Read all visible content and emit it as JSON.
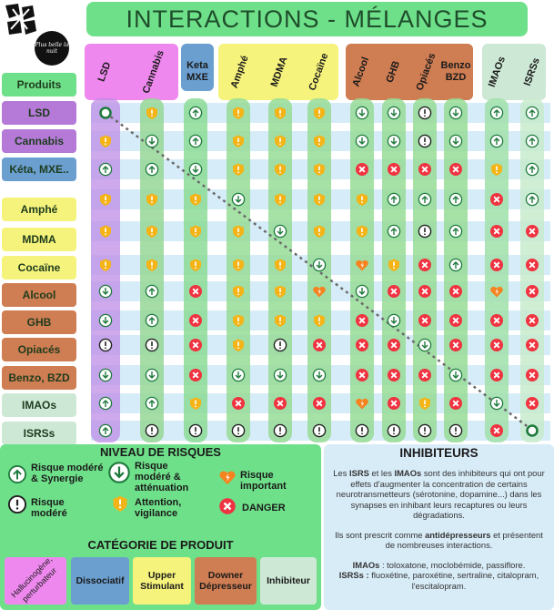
{
  "title": "INTERACTIONS - MÉLANGES",
  "logo_text": "Plus belle la nuit",
  "produits_label": "Produits",
  "colors": {
    "pink": "#ee88ee",
    "blue": "#6b9fd0",
    "yellow": "#f6f37c",
    "brown": "#cf7d52",
    "lightgreen": "#cde9d5",
    "green": "#6fe08a",
    "strip": "#d6ecf8",
    "safe": "#1e7a3c",
    "important": "#f5831f",
    "danger": "#ef3340",
    "warn": "#f4b417"
  },
  "columns": [
    {
      "label": "LSD"
    },
    {
      "label": "Cannabis"
    },
    {
      "label": "Keta MXE"
    },
    {
      "label": "Amphé"
    },
    {
      "label": "MDMA"
    },
    {
      "label": "Cocaïne"
    },
    {
      "label": "Alcool"
    },
    {
      "label": "GHB"
    },
    {
      "label": "Opiacés"
    },
    {
      "label": "Benzo BZD"
    },
    {
      "label": "IMAOs"
    },
    {
      "label": "ISRSs"
    }
  ],
  "rows": [
    {
      "label": "LSD"
    },
    {
      "label": "Cannabis"
    },
    {
      "label": "Kéta, MXE.."
    },
    {
      "label": "Amphé"
    },
    {
      "label": "MDMA"
    },
    {
      "label": "Cocaïne"
    },
    {
      "label": "Alcool"
    },
    {
      "label": "GHB"
    },
    {
      "label": "Opiacés"
    },
    {
      "label": "Benzo, BZD"
    },
    {
      "label": "IMAOs"
    },
    {
      "label": "ISRSs"
    }
  ],
  "matrix": [
    [
      "self",
      "W",
      "U",
      "W",
      "W",
      "W",
      "D",
      "D",
      "M",
      "D",
      "U",
      "U"
    ],
    [
      "W",
      "D",
      "U",
      "W",
      "W",
      "W",
      "D",
      "D",
      "M",
      "D",
      "U",
      "U"
    ],
    [
      "U",
      "U",
      "D",
      "W",
      "W",
      "W",
      "X",
      "X",
      "X",
      "X",
      "W",
      "U"
    ],
    [
      "W",
      "W",
      "W",
      "D",
      "W",
      "W",
      "W",
      "U",
      "U",
      "U",
      "X",
      "U"
    ],
    [
      "W",
      "W",
      "W",
      "W",
      "D",
      "W",
      "W",
      "U",
      "M",
      "U",
      "X",
      "X"
    ],
    [
      "W",
      "W",
      "W",
      "W",
      "W",
      "D",
      "I",
      "W",
      "X",
      "U",
      "X",
      "X"
    ],
    [
      "D",
      "U",
      "X",
      "W",
      "W",
      "I",
      "D",
      "X",
      "X",
      "X",
      "I",
      "X"
    ],
    [
      "D",
      "U",
      "X",
      "W",
      "W",
      "W",
      "X",
      "D",
      "X",
      "X",
      "X",
      "X"
    ],
    [
      "M",
      "M",
      "X",
      "W",
      "M",
      "X",
      "X",
      "X",
      "D",
      "X",
      "X",
      "X"
    ],
    [
      "D",
      "D",
      "X",
      "D",
      "D",
      "D",
      "X",
      "X",
      "X",
      "D",
      "X",
      "X"
    ],
    [
      "U",
      "U",
      "W",
      "X",
      "X",
      "X",
      "I",
      "X",
      "W",
      "X",
      "D",
      "X"
    ],
    [
      "U",
      "M",
      "M",
      "M",
      "M",
      "M",
      "M",
      "M",
      "M",
      "M",
      "X",
      "self"
    ]
  ],
  "legend": {
    "niveau_title": "NIVEAU DE RISQUES",
    "items": {
      "synergie": "Risque modéré & Synergie",
      "attenuation": "Risque modéré & atténuation",
      "important": "Risque important",
      "modere": "Risque modéré",
      "vigilance": "Attention, vigilance",
      "danger": "DANGER"
    },
    "categorie_title": "CATÉGORIE DE PRODUIT",
    "categories": {
      "halluc": "Hallucinogène, perturbateur",
      "dissoc": "Dissociatif",
      "upper": "Upper Stimulant",
      "downer": "Downer Dépresseur",
      "inhib": "Inhibiteur"
    }
  },
  "inhibiteurs": {
    "title": "INHIBITEURS",
    "p1_a": "Les ",
    "p1_isrs": "ISRS",
    "p1_b": " et les ",
    "p1_imaos": "IMAOs",
    "p1_c": " sont des inhibiteurs qui ont pour effets d'augmenter la concentration de certains neurotransmetteurs (sérotonine, dopamine...) dans les synapses en inhibant leurs recaptures ou leurs dégradations.",
    "p2_a": "Ils sont  prescrit comme ",
    "p2_b": "antidépresseurs",
    "p2_c": " et présentent de nombreuses interactions.",
    "imaos_label": "IMAOs",
    "imaos_text": " : toloxatone, moclobémide, passiflore.",
    "isrss_label": "ISRSs :",
    "isrss_text": " fluoxétine, paroxétine, sertraline, citalopram, l'escitalopram."
  }
}
